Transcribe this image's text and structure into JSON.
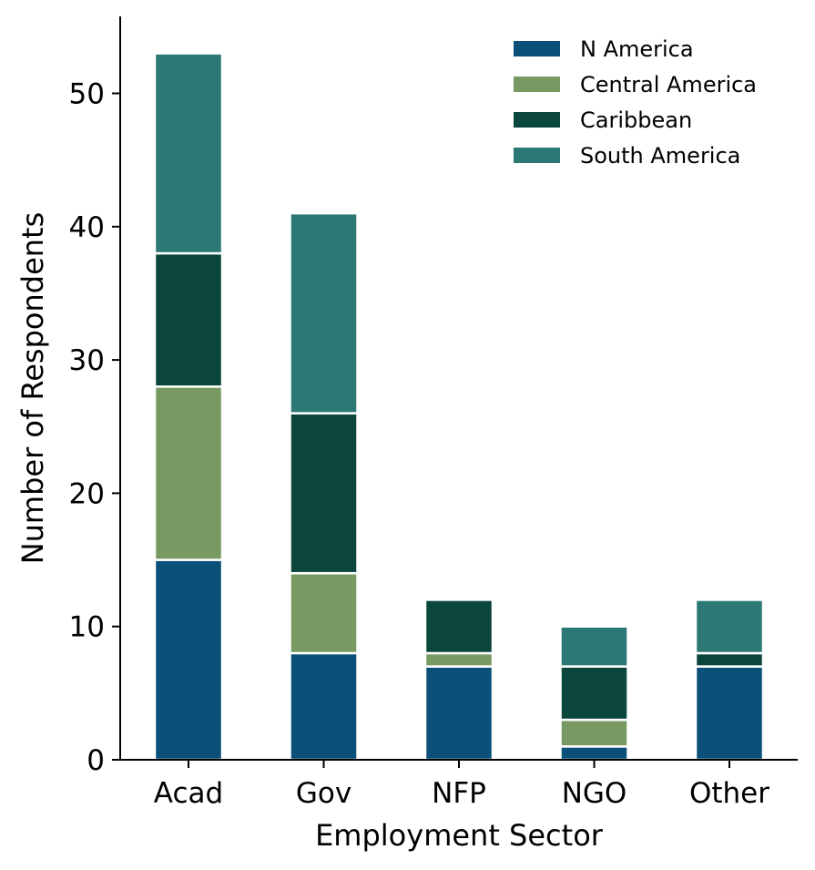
{
  "chart_data": {
    "type": "bar",
    "stacked": true,
    "categories": [
      "Acad",
      "Gov",
      "NFP",
      "NGO",
      "Other"
    ],
    "series": [
      {
        "name": "N America",
        "color": "#0a5078",
        "values": [
          15,
          8,
          7,
          1,
          7
        ]
      },
      {
        "name": "Central America",
        "color": "#789a62",
        "values": [
          13,
          6,
          1,
          2,
          0
        ]
      },
      {
        "name": "Caribbean",
        "color": "#0a463c",
        "values": [
          10,
          12,
          4,
          4,
          1
        ]
      },
      {
        "name": "South America",
        "color": "#2b7874",
        "values": [
          15,
          15,
          0,
          3,
          4
        ]
      }
    ],
    "xlabel": "Employment Sector",
    "ylabel": "Number of Respondents",
    "ylim": [
      0,
      56
    ],
    "yticks": [
      0,
      10,
      20,
      30,
      40,
      50
    ],
    "grid": false,
    "legend_position": "top-right"
  }
}
